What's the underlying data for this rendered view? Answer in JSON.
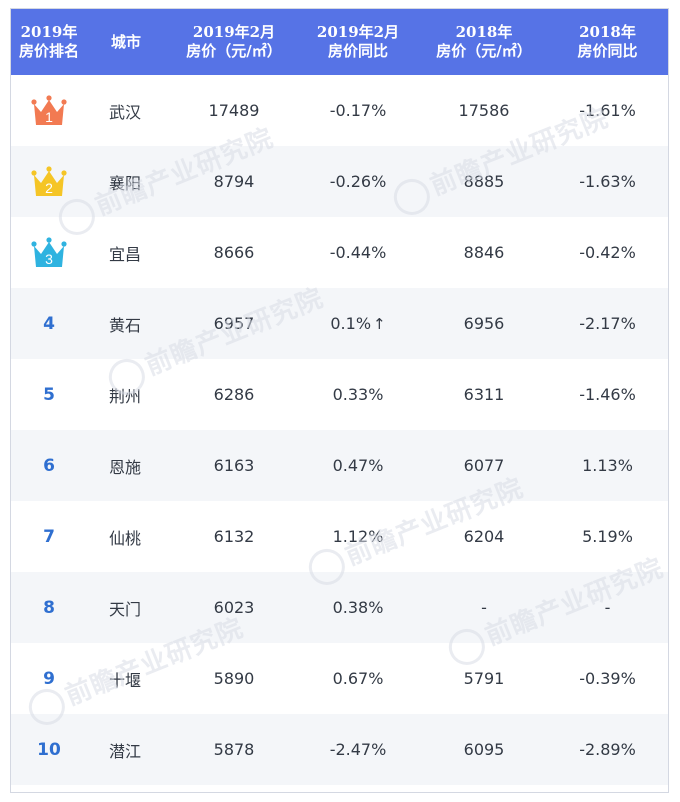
{
  "table": {
    "headers": [
      "2019年\n房价排名",
      "城市",
      "2019年2月\n房价（元/㎡）",
      "2019年2月\n房价同比",
      "2018年\n房价（元/㎡）",
      "2018年\n房价同比"
    ],
    "rows": [
      {
        "rank": "1",
        "city": "武汉",
        "price_2019_feb": "17489",
        "yoy_2019_feb": "-0.17%",
        "price_2018": "17586",
        "yoy_2018": "-1.61%"
      },
      {
        "rank": "2",
        "city": "襄阳",
        "price_2019_feb": "8794",
        "yoy_2019_feb": "-0.26%",
        "price_2018": "8885",
        "yoy_2018": "-1.63%"
      },
      {
        "rank": "3",
        "city": "宜昌",
        "price_2019_feb": "8666",
        "yoy_2019_feb": "-0.44%",
        "price_2018": "8846",
        "yoy_2018": "-0.42%"
      },
      {
        "rank": "4",
        "city": "黄石",
        "price_2019_feb": "6957",
        "yoy_2019_feb": "0.1%",
        "yoy_arrow": "↑",
        "price_2018": "6956",
        "yoy_2018": "-2.17%"
      },
      {
        "rank": "5",
        "city": "荆州",
        "price_2019_feb": "6286",
        "yoy_2019_feb": "0.33%",
        "price_2018": "6311",
        "yoy_2018": "-1.46%"
      },
      {
        "rank": "6",
        "city": "恩施",
        "price_2019_feb": "6163",
        "yoy_2019_feb": "0.47%",
        "price_2018": "6077",
        "yoy_2018": "1.13%"
      },
      {
        "rank": "7",
        "city": "仙桃",
        "price_2019_feb": "6132",
        "yoy_2019_feb": "1.12%",
        "price_2018": "6204",
        "yoy_2018": "5.19%"
      },
      {
        "rank": "8",
        "city": "天门",
        "price_2019_feb": "6023",
        "yoy_2019_feb": "0.38%",
        "price_2018": "-",
        "yoy_2018": "-"
      },
      {
        "rank": "9",
        "city": "十堰",
        "price_2019_feb": "5890",
        "yoy_2019_feb": "0.67%",
        "price_2018": "5791",
        "yoy_2018": "-0.39%"
      },
      {
        "rank": "10",
        "city": "潜江",
        "price_2019_feb": "5878",
        "yoy_2019_feb": "-2.47%",
        "price_2018": "6095",
        "yoy_2018": "-2.89%"
      }
    ]
  },
  "crowns": [
    {
      "color": "#f27a52",
      "icon": "crown-icon"
    },
    {
      "color": "#f5c526",
      "icon": "crown-icon"
    },
    {
      "color": "#2fb3e0",
      "icon": "crown-icon"
    }
  ],
  "colors": {
    "header_bg": "#5673e6",
    "rank_text": "#2f6fd0",
    "alt_row": "#f4f6f9"
  },
  "watermark": {
    "text": "前瞻产业研究院"
  }
}
